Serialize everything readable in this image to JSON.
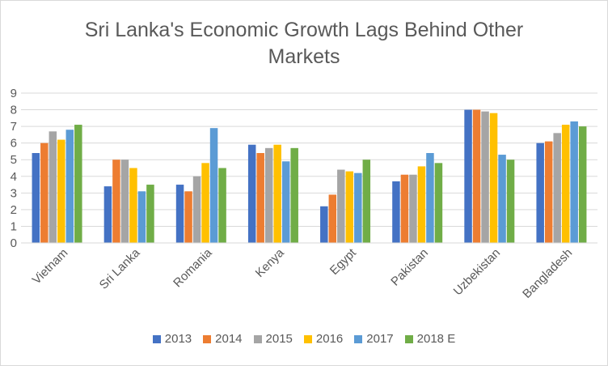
{
  "chart_data": {
    "type": "bar",
    "title_lines": [
      "Sri Lanka's Economic Growth Lags Behind Other",
      "Markets"
    ],
    "categories": [
      "Vietnam",
      "Sri Lanka",
      "Romania",
      "Kenya",
      "Egypt",
      "Pakistan",
      "Uzbekistan",
      "Bangladesh"
    ],
    "series": [
      {
        "name": "2013",
        "color": "#4472c4",
        "values": [
          5.4,
          3.4,
          3.5,
          5.9,
          2.2,
          3.7,
          8.0,
          6.0
        ]
      },
      {
        "name": "2014",
        "color": "#ed7d31",
        "values": [
          6.0,
          5.0,
          3.1,
          5.4,
          2.9,
          4.1,
          8.0,
          6.1
        ]
      },
      {
        "name": "2015",
        "color": "#a5a5a5",
        "values": [
          6.7,
          5.0,
          4.0,
          5.7,
          4.4,
          4.1,
          7.9,
          6.6
        ]
      },
      {
        "name": "2016",
        "color": "#ffc000",
        "values": [
          6.2,
          4.5,
          4.8,
          5.9,
          4.3,
          4.6,
          7.8,
          7.1
        ]
      },
      {
        "name": "2017",
        "color": "#5b9bd5",
        "values": [
          6.8,
          3.1,
          6.9,
          4.9,
          4.2,
          5.4,
          5.3,
          7.3
        ]
      },
      {
        "name": "2018 E",
        "color": "#70ad47",
        "values": [
          7.1,
          3.5,
          4.5,
          5.7,
          5.0,
          4.8,
          5.0,
          7.0
        ]
      }
    ],
    "ylim": [
      0,
      9
    ],
    "yticks": [
      "0",
      "1",
      "2",
      "3",
      "4",
      "5",
      "6",
      "7",
      "8",
      "9"
    ],
    "xlabel": "",
    "ylabel": "",
    "grid": true,
    "legend_position": "bottom"
  }
}
